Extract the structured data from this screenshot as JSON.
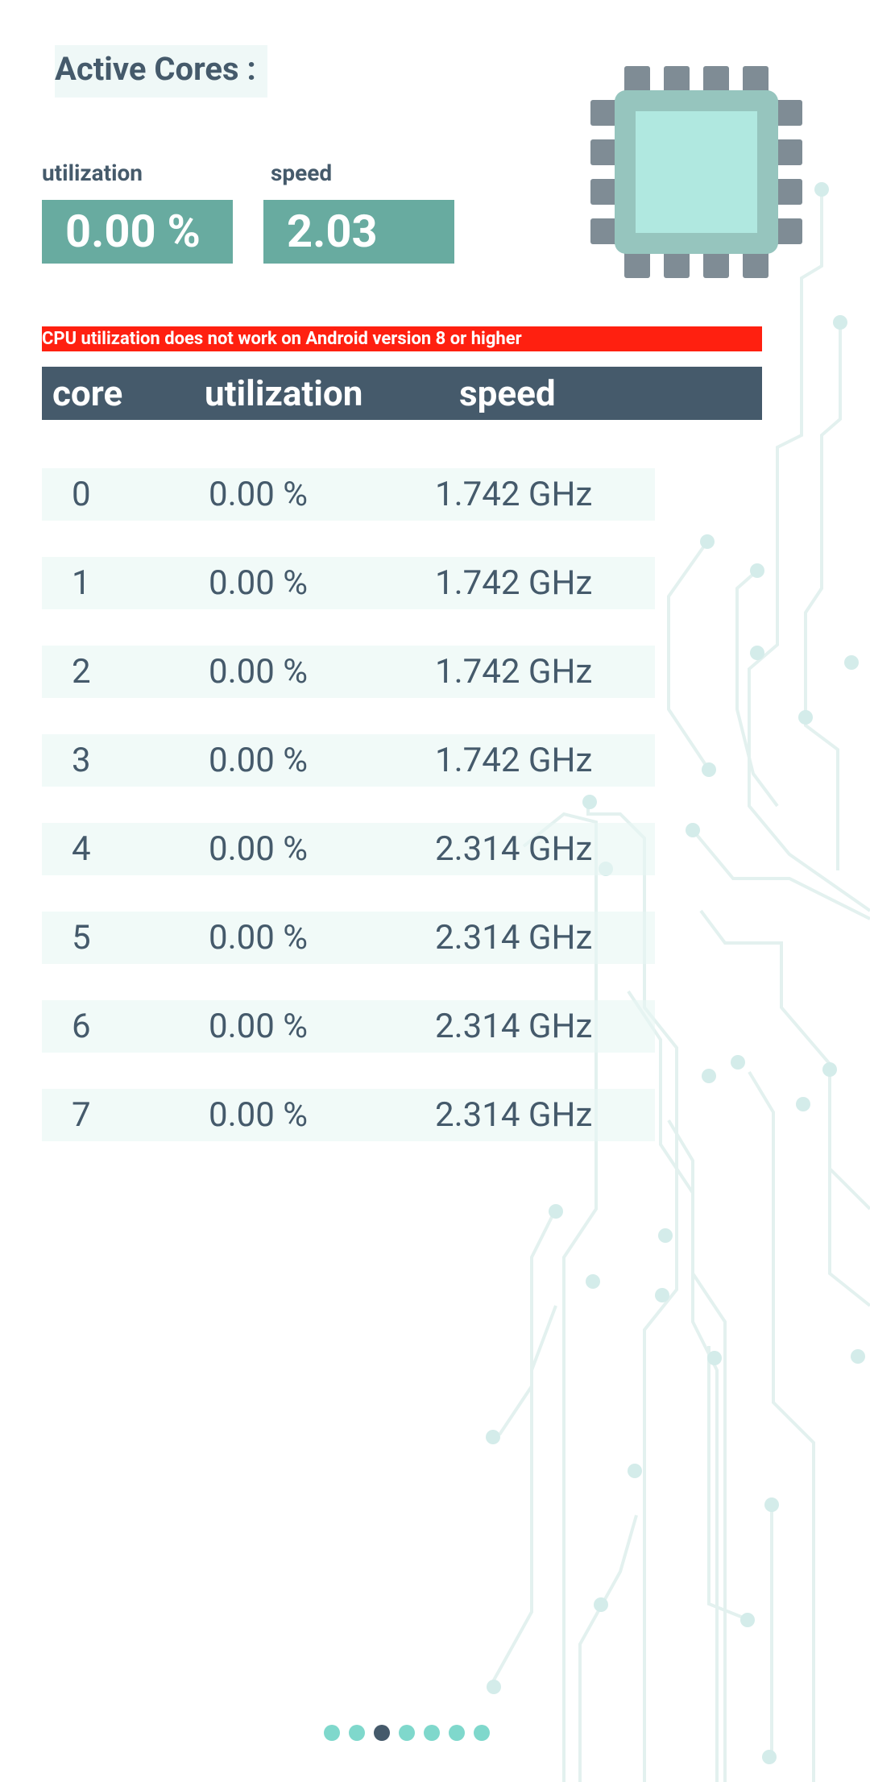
{
  "header": {
    "title": "Active Cores :"
  },
  "summary": {
    "utilization_label": "utilization",
    "utilization_value": "0.00 %",
    "speed_label": "speed",
    "speed_value": "2.03"
  },
  "warning": "CPU utilization does not work on Android version 8 or higher",
  "table": {
    "columns": [
      "core",
      "utilization",
      "speed"
    ],
    "rows": [
      [
        "0",
        "0.00 %",
        "1.742 GHz"
      ],
      [
        "1",
        "0.00 %",
        "1.742 GHz"
      ],
      [
        "2",
        "0.00 %",
        "1.742 GHz"
      ],
      [
        "3",
        "0.00 %",
        "1.742 GHz"
      ],
      [
        "4",
        "0.00 %",
        "2.314 GHz"
      ],
      [
        "5",
        "0.00 %",
        "2.314 GHz"
      ],
      [
        "6",
        "0.00 %",
        "2.314 GHz"
      ],
      [
        "7",
        "0.00 %",
        "2.314 GHz"
      ]
    ]
  }
}
